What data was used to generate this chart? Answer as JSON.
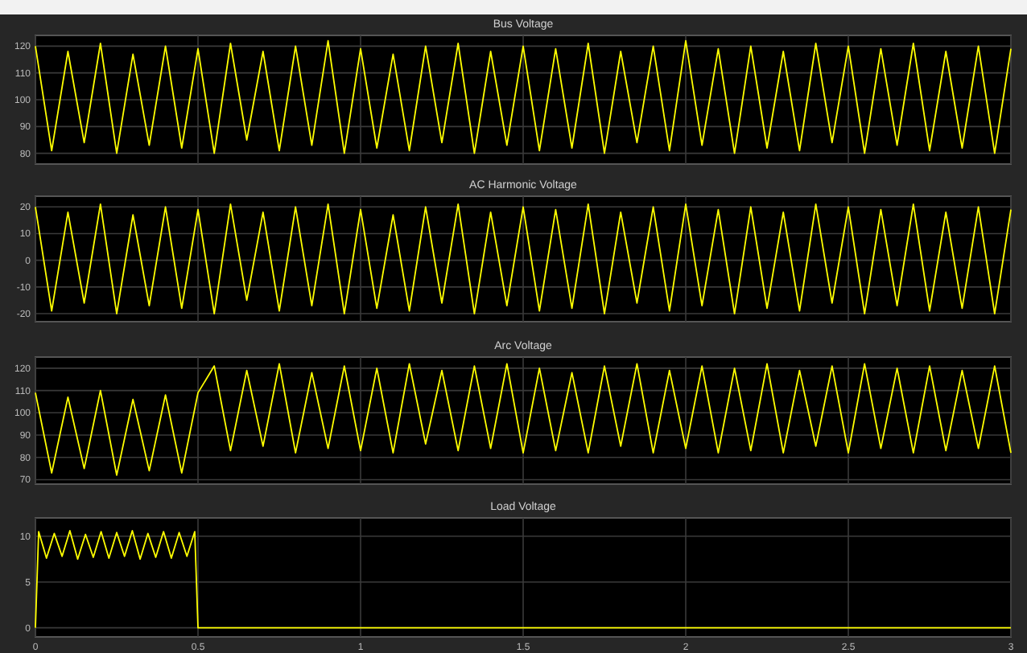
{
  "chart_data": [
    {
      "type": "line",
      "title": "Bus Voltage",
      "tick_labels": "y",
      "grid": true,
      "xlim": [
        0,
        3
      ],
      "xticks": [
        0,
        0.5,
        1,
        1.5,
        2,
        2.5,
        3
      ],
      "ylim": [
        76,
        124
      ],
      "yticks": [
        80,
        90,
        100,
        110,
        120
      ],
      "series": [
        {
          "color": "#ffff00",
          "x": [
            0,
            0.05,
            0.1,
            0.15,
            0.2,
            0.25,
            0.3,
            0.35,
            0.4,
            0.45,
            0.5,
            0.55,
            0.6,
            0.65,
            0.7,
            0.75,
            0.8,
            0.85,
            0.9,
            0.95,
            1,
            1.05,
            1.1,
            1.15,
            1.2,
            1.25,
            1.3,
            1.35,
            1.4,
            1.45,
            1.5,
            1.55,
            1.6,
            1.65,
            1.7,
            1.75,
            1.8,
            1.85,
            1.9,
            1.95,
            2,
            2.05,
            2.1,
            2.15,
            2.2,
            2.25,
            2.3,
            2.35,
            2.4,
            2.45,
            2.5,
            2.55,
            2.6,
            2.65,
            2.7,
            2.75,
            2.8,
            2.85,
            2.9,
            2.95,
            3
          ],
          "values": [
            120,
            81,
            118,
            84,
            121,
            80,
            117,
            83,
            120,
            82,
            119,
            80,
            121,
            85,
            118,
            81,
            120,
            83,
            122,
            80,
            119,
            82,
            117,
            81,
            120,
            84,
            121,
            80,
            118,
            83,
            120,
            81,
            119,
            82,
            121,
            80,
            118,
            84,
            120,
            81,
            122,
            83,
            119,
            80,
            120,
            82,
            118,
            81,
            121,
            84,
            120,
            80,
            119,
            83,
            121,
            81,
            118,
            82,
            120,
            80,
            119
          ]
        }
      ]
    },
    {
      "type": "line",
      "title": "AC Harmonic Voltage",
      "tick_labels": "y",
      "grid": true,
      "xlim": [
        0,
        3
      ],
      "xticks": [
        0,
        0.5,
        1,
        1.5,
        2,
        2.5,
        3
      ],
      "ylim": [
        -23,
        24
      ],
      "yticks": [
        -20,
        -10,
        0,
        10,
        20
      ],
      "series": [
        {
          "color": "#ffff00",
          "x": [
            0,
            0.05,
            0.1,
            0.15,
            0.2,
            0.25,
            0.3,
            0.35,
            0.4,
            0.45,
            0.5,
            0.55,
            0.6,
            0.65,
            0.7,
            0.75,
            0.8,
            0.85,
            0.9,
            0.95,
            1,
            1.05,
            1.1,
            1.15,
            1.2,
            1.25,
            1.3,
            1.35,
            1.4,
            1.45,
            1.5,
            1.55,
            1.6,
            1.65,
            1.7,
            1.75,
            1.8,
            1.85,
            1.9,
            1.95,
            2,
            2.05,
            2.1,
            2.15,
            2.2,
            2.25,
            2.3,
            2.35,
            2.4,
            2.45,
            2.5,
            2.55,
            2.6,
            2.65,
            2.7,
            2.75,
            2.8,
            2.85,
            2.9,
            2.95,
            3
          ],
          "values": [
            20,
            -19,
            18,
            -16,
            21,
            -20,
            17,
            -17,
            20,
            -18,
            19,
            -20,
            21,
            -15,
            18,
            -19,
            20,
            -17,
            21,
            -20,
            19,
            -18,
            17,
            -19,
            20,
            -16,
            21,
            -20,
            18,
            -17,
            20,
            -19,
            19,
            -18,
            21,
            -20,
            18,
            -16,
            20,
            -19,
            21,
            -17,
            19,
            -20,
            20,
            -18,
            18,
            -19,
            21,
            -16,
            20,
            -20,
            19,
            -17,
            21,
            -19,
            18,
            -18,
            20,
            -20,
            19
          ]
        }
      ]
    },
    {
      "type": "line",
      "title": "Arc Voltage",
      "tick_labels": "y",
      "grid": true,
      "xlim": [
        0,
        3
      ],
      "xticks": [
        0,
        0.5,
        1,
        1.5,
        2,
        2.5,
        3
      ],
      "ylim": [
        68,
        125
      ],
      "yticks": [
        70,
        80,
        90,
        100,
        110,
        120
      ],
      "series": [
        {
          "color": "#ffff00",
          "x": [
            0,
            0.05,
            0.1,
            0.15,
            0.2,
            0.25,
            0.3,
            0.35,
            0.4,
            0.45,
            0.5,
            0.55,
            0.6,
            0.65,
            0.7,
            0.75,
            0.8,
            0.85,
            0.9,
            0.95,
            1,
            1.05,
            1.1,
            1.15,
            1.2,
            1.25,
            1.3,
            1.35,
            1.4,
            1.45,
            1.5,
            1.55,
            1.6,
            1.65,
            1.7,
            1.75,
            1.8,
            1.85,
            1.9,
            1.95,
            2,
            2.05,
            2.1,
            2.15,
            2.2,
            2.25,
            2.3,
            2.35,
            2.4,
            2.45,
            2.5,
            2.55,
            2.6,
            2.65,
            2.7,
            2.75,
            2.8,
            2.85,
            2.9,
            2.95,
            3
          ],
          "values": [
            109,
            73,
            107,
            75,
            110,
            72,
            106,
            74,
            108,
            73,
            109,
            121,
            83,
            119,
            85,
            122,
            82,
            118,
            84,
            121,
            83,
            120,
            82,
            122,
            86,
            119,
            83,
            121,
            84,
            122,
            82,
            120,
            83,
            118,
            82,
            121,
            85,
            122,
            82,
            119,
            84,
            121,
            82,
            120,
            83,
            122,
            82,
            119,
            85,
            121,
            82,
            122,
            84,
            120,
            82,
            121,
            83,
            119,
            84,
            121,
            82
          ]
        }
      ]
    },
    {
      "type": "line",
      "title": "Load Voltage",
      "grid": true,
      "xlim": [
        0,
        3
      ],
      "xticks": [
        0,
        0.5,
        1,
        1.5,
        2,
        2.5,
        3
      ],
      "ylim": [
        -1,
        12
      ],
      "yticks": [
        0,
        5,
        10
      ],
      "series": [
        {
          "color": "#ffff00",
          "x": [
            0,
            0.01,
            0.034,
            0.058,
            0.082,
            0.106,
            0.13,
            0.154,
            0.178,
            0.202,
            0.226,
            0.25,
            0.274,
            0.298,
            0.322,
            0.346,
            0.37,
            0.394,
            0.418,
            0.442,
            0.466,
            0.49,
            0.5,
            3
          ],
          "values": [
            0,
            10.5,
            7.6,
            10.3,
            7.8,
            10.6,
            7.5,
            10.2,
            7.7,
            10.5,
            7.6,
            10.4,
            7.8,
            10.6,
            7.5,
            10.3,
            7.7,
            10.5,
            7.6,
            10.4,
            7.8,
            10.5,
            0,
            0
          ]
        }
      ]
    }
  ]
}
